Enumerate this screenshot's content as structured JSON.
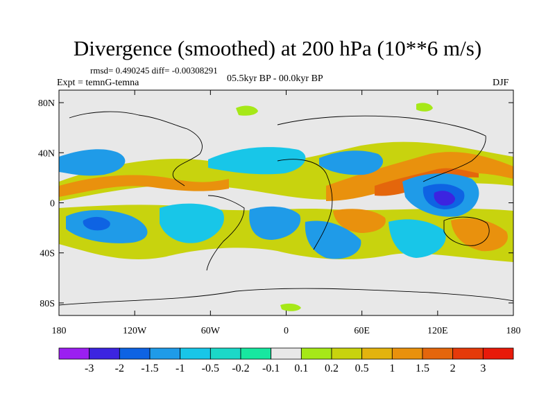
{
  "title": "Divergence (smoothed) at 200 hPa (10**6 m/s)",
  "stats": "rmsd= 0.490245 diff= -0.00308291",
  "experiment": "Expt = temnG-temna",
  "period": "05.5kyr BP - 00.0kyr BP",
  "season": "DJF",
  "axes": {
    "y_ticks": [
      {
        "label": "80N",
        "lat": 80
      },
      {
        "label": "40N",
        "lat": 40
      },
      {
        "label": "0",
        "lat": 0
      },
      {
        "label": "40S",
        "lat": -40
      },
      {
        "label": "80S",
        "lat": -80
      }
    ],
    "x_ticks": [
      {
        "label": "180",
        "lon": -180
      },
      {
        "label": "120W",
        "lon": -120
      },
      {
        "label": "60W",
        "lon": -60
      },
      {
        "label": "0",
        "lon": 0
      },
      {
        "label": "60E",
        "lon": 60
      },
      {
        "label": "120E",
        "lon": 120
      },
      {
        "label": "180",
        "lon": 180
      }
    ]
  },
  "colorbar": {
    "colors": [
      "#9b1ff1",
      "#3c24e0",
      "#0e63e3",
      "#1f9be8",
      "#18c6e8",
      "#1bd8c8",
      "#17e7a0",
      "#e8e8e8",
      "#a6e818",
      "#c8d30e",
      "#e3b30e",
      "#e9910d",
      "#e4660c",
      "#e53a0a",
      "#e81a0a"
    ],
    "labels": [
      "-3",
      "-2",
      "-1.5",
      "-1",
      "-0.5",
      "-0.2",
      "-0.1",
      "0.1",
      "0.2",
      "0.5",
      "1",
      "1.5",
      "2",
      "3"
    ]
  }
}
